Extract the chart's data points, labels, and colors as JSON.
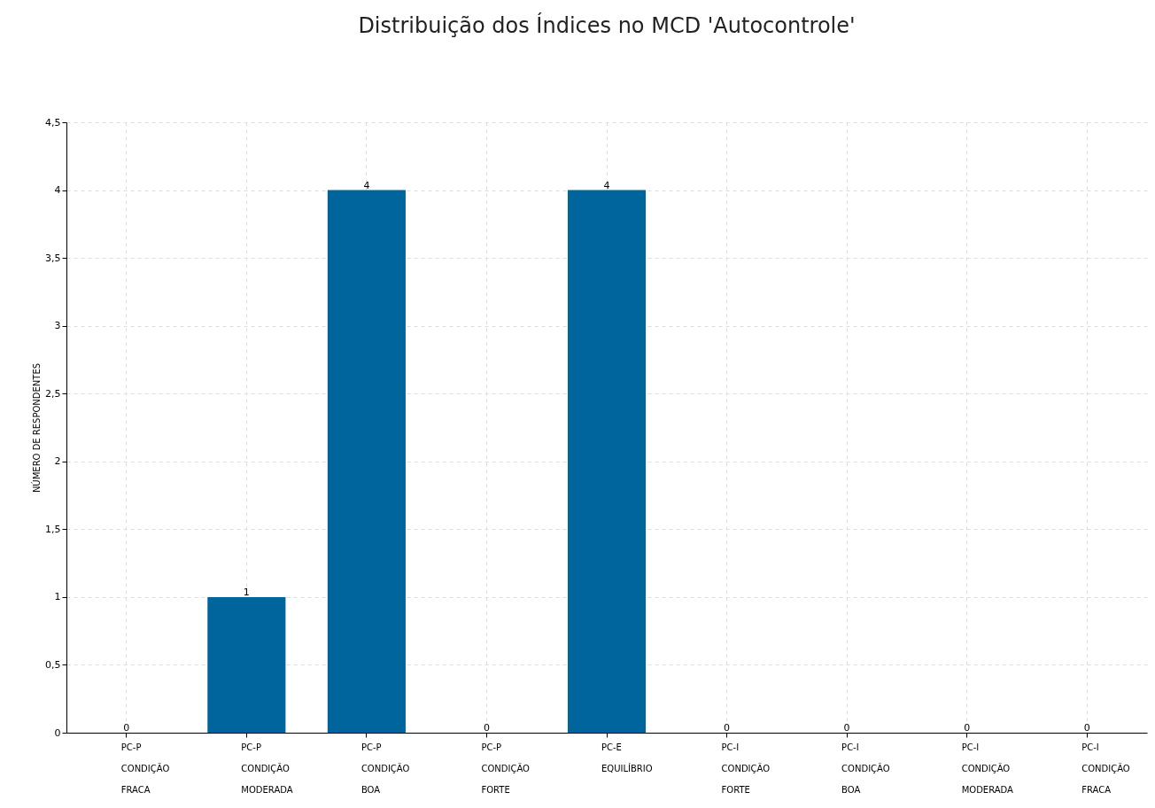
{
  "chart_data": {
    "type": "bar",
    "title": "Distribuição dos Índices no MCD 'Autocontrole'",
    "ylabel": "NÚMERO DE RESPONDENTES",
    "categories": [
      "PC-P\nCONDIÇÃO\nFRACA",
      "PC-P\nCONDIÇÃO\nMODERADA",
      "PC-P\nCONDIÇÃO\nBOA",
      "PC-P\nCONDIÇÃO\nFORTE",
      "PC-E\nEQUILÍBRIO",
      "PC-I\nCONDIÇÃO\nFORTE",
      "PC-I\nCONDIÇÃO\nBOA",
      "PC-I\nCONDIÇÃO\nMODERADA",
      "PC-I\nCONDIÇÃO\nFRACA"
    ],
    "values": [
      0,
      1,
      4,
      0,
      4,
      0,
      0,
      0,
      0
    ],
    "color": "#00659c",
    "ylim": [
      0,
      4.5
    ],
    "yticks": [
      0,
      {
        "value": 0.5,
        "label": "0,5"
      },
      1,
      {
        "value": 1.5,
        "label": "1,5"
      },
      2,
      {
        "value": 2.5,
        "label": "2,5"
      },
      3,
      {
        "value": 3.5,
        "label": "3,5"
      },
      4,
      {
        "value": 4.5,
        "label": "4,5"
      }
    ],
    "grid": true,
    "data_labels": true
  }
}
